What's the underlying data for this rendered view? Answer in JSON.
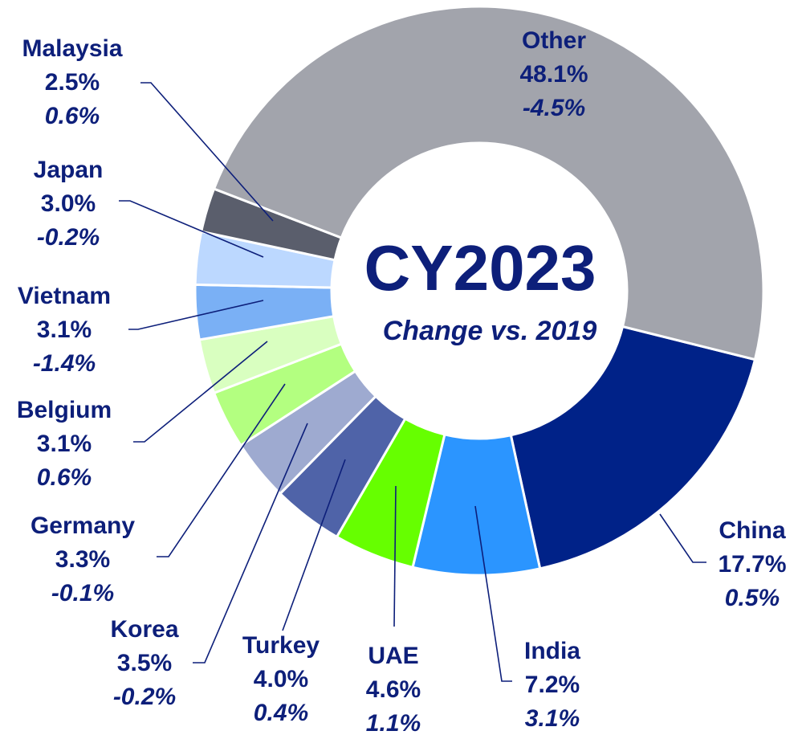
{
  "chart_data": {
    "type": "donut",
    "title": "CY2023",
    "subtitle": "Change vs. 2019",
    "categories": [
      "China",
      "India",
      "UAE",
      "Turkey",
      "Korea",
      "Germany",
      "Belgium",
      "Vietnam",
      "Japan",
      "Malaysia",
      "Other"
    ],
    "values": [
      17.7,
      7.2,
      4.6,
      4.0,
      3.5,
      3.3,
      3.1,
      3.1,
      3.0,
      2.5,
      48.1
    ],
    "value_labels": [
      "17.7%",
      "7.2%",
      "4.6%",
      "4.0%",
      "3.5%",
      "3.3%",
      "3.1%",
      "3.1%",
      "3.0%",
      "2.5%",
      "48.1%"
    ],
    "changes": [
      0.5,
      3.1,
      1.1,
      0.4,
      -0.2,
      -0.1,
      0.6,
      -1.4,
      -0.2,
      0.6,
      -4.5
    ],
    "change_labels": [
      "0.5%",
      "3.1%",
      "1.1%",
      "0.4%",
      "-0.2%",
      "-0.1%",
      "0.6%",
      "-1.4%",
      "-0.2%",
      "0.6%",
      "-4.5%"
    ],
    "colors": [
      "#002288",
      "#2b95ff",
      "#66ff00",
      "#4f63a8",
      "#9eaad0",
      "#b3ff80",
      "#d9ffc0",
      "#7ab0f5",
      "#bcd8ff",
      "#5a5e6c",
      "#a2a4ac"
    ]
  }
}
